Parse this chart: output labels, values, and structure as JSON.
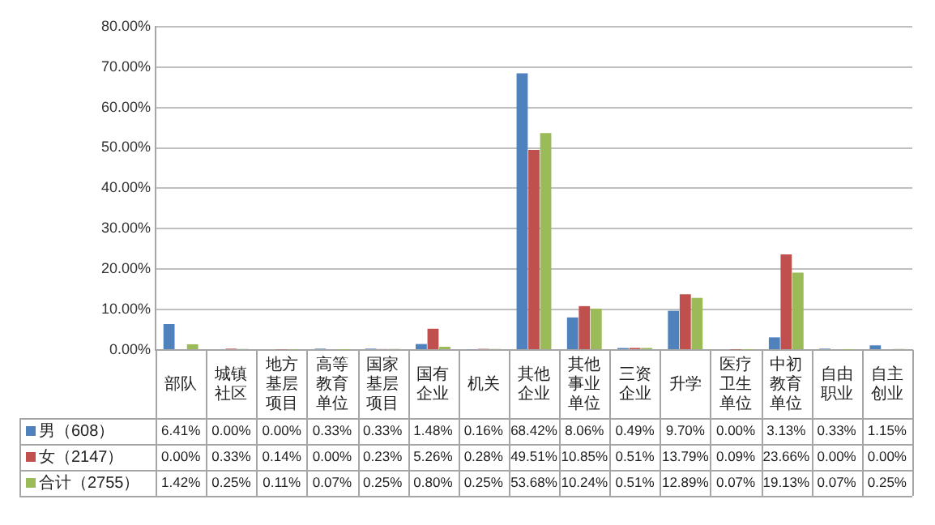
{
  "chart_data": {
    "type": "bar",
    "categories": [
      "部队",
      "城镇社区",
      "地方基层项目",
      "高等教育单位",
      "国家基层项目",
      "国有企业",
      "机关",
      "其他企业",
      "其他事业单位",
      "三资企业",
      "升学",
      "医疗卫生单位",
      "中初教育单位",
      "自由职业",
      "自主创业"
    ],
    "series": [
      {
        "name": "男（608）",
        "color": "#4f81bd",
        "values": [
          6.41,
          0.0,
          0.0,
          0.33,
          0.33,
          1.48,
          0.16,
          68.42,
          8.06,
          0.49,
          9.7,
          0.0,
          3.13,
          0.33,
          1.15
        ],
        "value_labels": [
          "6.41%",
          "0.00%",
          "0.00%",
          "0.33%",
          "0.33%",
          "1.48%",
          "0.16%",
          "68.42%",
          "8.06%",
          "0.49%",
          "9.70%",
          "0.00%",
          "3.13%",
          "0.33%",
          "1.15%"
        ]
      },
      {
        "name": "女（2147）",
        "color": "#c0504d",
        "values": [
          0.0,
          0.33,
          0.14,
          0.0,
          0.23,
          5.26,
          0.28,
          49.51,
          10.85,
          0.51,
          13.79,
          0.09,
          23.66,
          0.0,
          0.0
        ],
        "value_labels": [
          "0.00%",
          "0.33%",
          "0.14%",
          "0.00%",
          "0.23%",
          "5.26%",
          "0.28%",
          "49.51%",
          "10.85%",
          "0.51%",
          "13.79%",
          "0.09%",
          "23.66%",
          "0.00%",
          "0.00%"
        ]
      },
      {
        "name": "合计（2755）",
        "color": "#9bbb59",
        "values": [
          1.42,
          0.25,
          0.11,
          0.07,
          0.25,
          0.8,
          0.25,
          53.68,
          10.24,
          0.51,
          12.89,
          0.07,
          19.13,
          0.07,
          0.25
        ],
        "value_labels": [
          "1.42%",
          "0.25%",
          "0.11%",
          "0.07%",
          "0.25%",
          "0.80%",
          "0.25%",
          "53.68%",
          "10.24%",
          "0.51%",
          "12.89%",
          "0.07%",
          "19.13%",
          "0.07%",
          "0.25%"
        ]
      }
    ],
    "ylim": [
      0,
      80
    ],
    "yticks": [
      {
        "value": 0,
        "label": "0.00%"
      },
      {
        "value": 10,
        "label": "10.00%"
      },
      {
        "value": 20,
        "label": "20.00%"
      },
      {
        "value": 30,
        "label": "30.00%"
      },
      {
        "value": 40,
        "label": "40.00%"
      },
      {
        "value": 50,
        "label": "50.00%"
      },
      {
        "value": 60,
        "label": "60.00%"
      },
      {
        "value": 70,
        "label": "70.00%"
      },
      {
        "value": 80,
        "label": "80.00%"
      }
    ],
    "grid": "y",
    "legend": "bottom left"
  }
}
